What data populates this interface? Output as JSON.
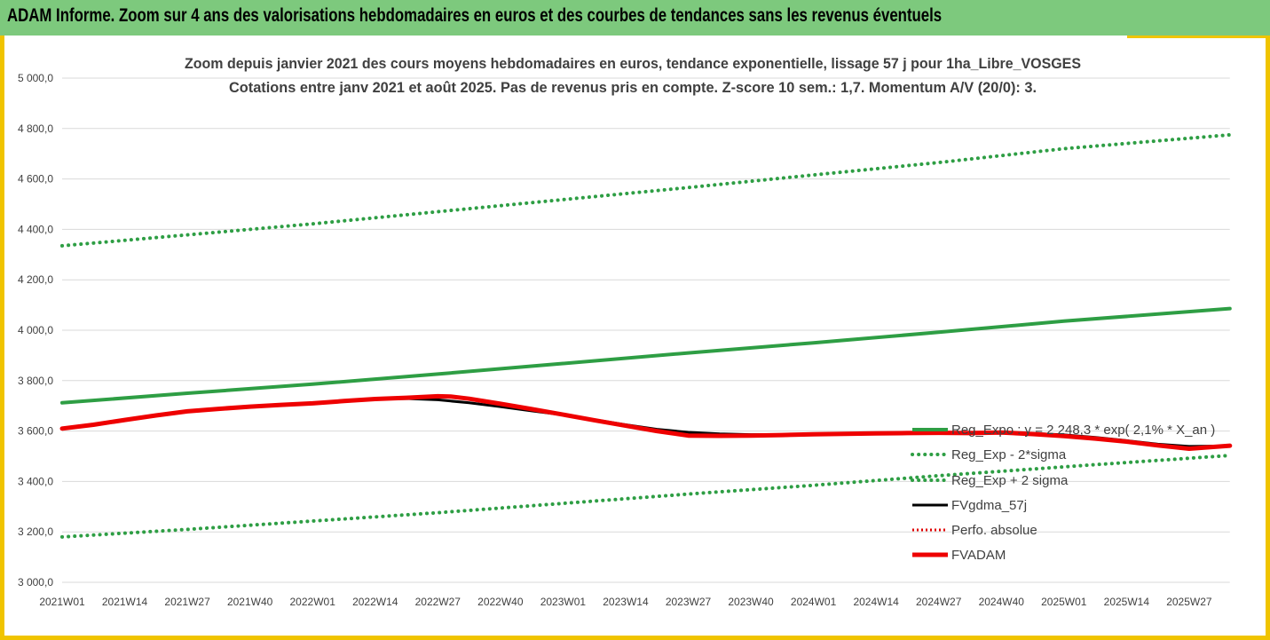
{
  "banner": {
    "title": "ADAM Informe. Zoom sur 4 ans des valorisations hebdomadaires en euros et des courbes de tendances sans les revenus éventuels"
  },
  "colors": {
    "banner_bg": "#7dc97d",
    "frame": "#f0c400",
    "reg_exp": "#2e9e44",
    "fvgdma": "#000000",
    "perfo": "#e00000",
    "fvadam": "#ee0000"
  },
  "chart_data": {
    "type": "line",
    "title": "Zoom depuis janvier 2021 des cours moyens hebdomadaires en euros, tendance exponentielle, lissage 57 j pour 1ha_Libre_VOSGES",
    "subtitle": "Cotations entre janv 2021 et août 2025.  Pas de revenus pris en compte. Z-score 10 sem.: 1,7. Momentum A/V (20/0): 3.",
    "categories": [
      "2021W01",
      "2021W14",
      "2021W27",
      "2021W40",
      "2022W01",
      "2022W14",
      "2022W27",
      "2022W40",
      "2023W01",
      "2023W14",
      "2023W27",
      "2023W40",
      "2024W01",
      "2024W14",
      "2024W27",
      "2024W40",
      "2025W01",
      "2025W14",
      "2025W27"
    ],
    "y_ticks": [
      "3 000,0",
      "3 200,0",
      "3 400,0",
      "3 600,0",
      "3 800,0",
      "4 000,0",
      "4 200,0",
      "4 400,0",
      "4 600,0",
      "4 800,0",
      "5 000,0"
    ],
    "ylim": [
      3000,
      5000
    ],
    "x_index_range": [
      0,
      18.65
    ],
    "grid": "horizontal",
    "legend_position": "bottom-right",
    "series": [
      {
        "name": "Reg_Expo : y = 2 248,3 * exp( 2,1% *  X_an )",
        "style": "solid",
        "x": [
          0,
          2,
          4,
          6,
          8,
          10,
          12,
          14,
          16,
          18.65
        ],
        "values": [
          3712,
          3750,
          3786,
          3826,
          3868,
          3910,
          3950,
          3992,
          4036,
          4086
        ]
      },
      {
        "name": "Reg_Exp - 2*sigma",
        "style": "dotted",
        "x": [
          0,
          2,
          4,
          6,
          8,
          10,
          12,
          14,
          16,
          18.65
        ],
        "values": [
          3180,
          3210,
          3243,
          3276,
          3313,
          3350,
          3385,
          3423,
          3458,
          3503
        ]
      },
      {
        "name": "Reg_Exp + 2 sigma",
        "style": "dotted",
        "x": [
          0,
          2,
          4,
          6,
          8,
          10,
          12,
          14,
          16,
          18.65
        ],
        "values": [
          4335,
          4378,
          4422,
          4470,
          4518,
          4566,
          4616,
          4665,
          4720,
          4775
        ]
      },
      {
        "name": "FVgdma_57j",
        "style": "solid",
        "x": [
          0,
          0.5,
          1,
          1.5,
          2,
          2.5,
          3,
          3.5,
          4,
          4.5,
          5,
          5.5,
          6,
          6.5,
          7,
          7.5,
          8,
          8.5,
          9,
          9.5,
          10,
          10.5,
          11,
          11.5,
          12,
          12.5,
          13,
          13.5,
          14,
          14.5,
          15,
          15.5,
          16,
          16.5,
          17,
          17.5,
          18,
          18.65
        ],
        "values": [
          3610,
          3627,
          3646,
          3664,
          3680,
          3689,
          3698,
          3705,
          3712,
          3720,
          3727,
          3729,
          3724,
          3712,
          3697,
          3680,
          3664,
          3645,
          3625,
          3607,
          3595,
          3589,
          3586,
          3586,
          3588,
          3590,
          3592,
          3592,
          3593,
          3592,
          3595,
          3591,
          3585,
          3575,
          3562,
          3548,
          3539,
          3541
        ]
      },
      {
        "name": "Perfo. absolue",
        "style": "dotted",
        "x": [],
        "values": []
      },
      {
        "name": "FVADAM",
        "style": "thick",
        "x": [
          0,
          0.5,
          1,
          1.5,
          2,
          2.5,
          3,
          3.5,
          4,
          4.5,
          5,
          5.5,
          6,
          6.2,
          6.5,
          7,
          7.5,
          8,
          8.5,
          9,
          9.5,
          10,
          10.5,
          11,
          11.5,
          12,
          12.5,
          13,
          13.5,
          14,
          14.5,
          15,
          15.5,
          16,
          16.5,
          17,
          17.5,
          18,
          18.65
        ],
        "values": [
          3610,
          3625,
          3644,
          3662,
          3678,
          3688,
          3697,
          3704,
          3710,
          3719,
          3727,
          3732,
          3738,
          3737,
          3728,
          3708,
          3687,
          3665,
          3643,
          3621,
          3600,
          3582,
          3581,
          3582,
          3584,
          3587,
          3589,
          3591,
          3592,
          3593,
          3592,
          3594,
          3588,
          3580,
          3570,
          3558,
          3543,
          3530,
          3542
        ]
      }
    ]
  }
}
